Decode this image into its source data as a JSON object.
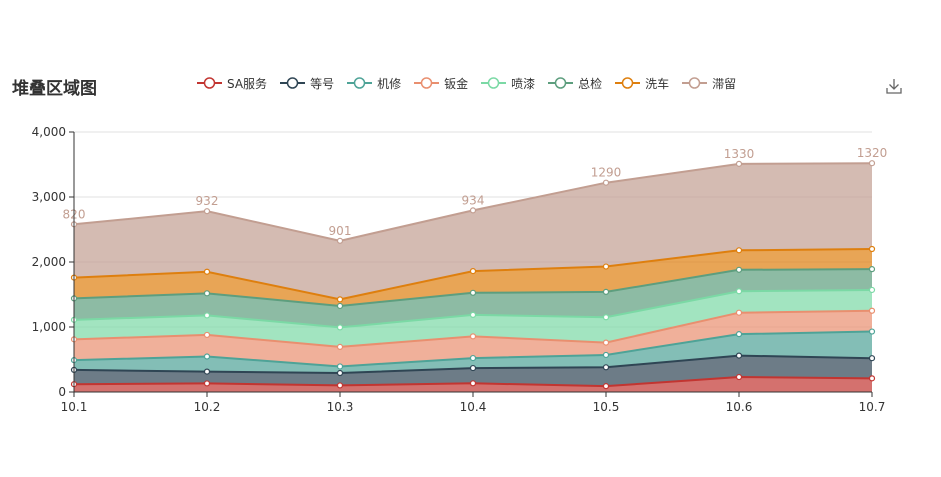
{
  "chart_data": {
    "type": "area",
    "title": "堆叠区域图",
    "stacked": true,
    "categories": [
      "10.1",
      "10.2",
      "10.3",
      "10.4",
      "10.5",
      "10.6",
      "10.7"
    ],
    "y_ticks": [
      "0",
      "1,000",
      "2,000",
      "3,000",
      "4,000"
    ],
    "ylim": [
      0,
      4000
    ],
    "grid": true,
    "legend_position": "top",
    "series": [
      {
        "name": "SA服务",
        "color": "#c23531",
        "values": [
          120,
          132,
          101,
          134,
          90,
          230,
          210
        ]
      },
      {
        "name": "等号",
        "color": "#2f4554",
        "values": [
          220,
          182,
          191,
          234,
          290,
          330,
          310
        ]
      },
      {
        "name": "机修",
        "color": "#4ea397",
        "values": [
          150,
          232,
          101,
          154,
          190,
          330,
          410
        ]
      },
      {
        "name": "钣金",
        "color": "#e98f6f",
        "values": [
          320,
          332,
          301,
          334,
          190,
          330,
          320
        ]
      },
      {
        "name": "喷漆",
        "color": "#7bd9a5",
        "values": [
          300,
          300,
          300,
          330,
          390,
          330,
          320
        ]
      },
      {
        "name": "总检",
        "color": "#5d9e7e",
        "values": [
          330,
          340,
          330,
          340,
          390,
          330,
          320
        ]
      },
      {
        "name": "洗车",
        "color": "#de7f0e",
        "values": [
          320,
          332,
          101,
          334,
          390,
          300,
          310
        ]
      },
      {
        "name": "滞留",
        "color": "#c29e91",
        "values": [
          820,
          932,
          901,
          934,
          1290,
          1330,
          1320
        ],
        "show_labels": true
      }
    ]
  }
}
